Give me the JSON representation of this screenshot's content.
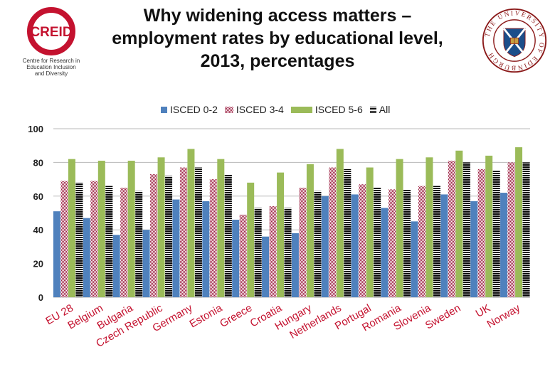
{
  "title_lines": [
    "Why widening access matters –",
    "employment rates by educational level,",
    "2013, percentages"
  ],
  "logo_left": {
    "name": "CREID",
    "caption": [
      "Centre for Research in",
      "Education Inclusion",
      "and Diversity"
    ]
  },
  "logo_right": {
    "text": "THE UNIVERSITY OF EDINBURGH"
  },
  "colors": {
    "isced02": "#4F81BD",
    "isced34": "#9B1C3F",
    "isced56": "#9BBB59",
    "all": "#000000",
    "creid_red": "#C4122F"
  },
  "chart_data": {
    "type": "bar",
    "ylim": [
      0,
      100
    ],
    "yticks": [
      0,
      20,
      40,
      60,
      80,
      100
    ],
    "grid": true,
    "legend_position": "top",
    "categories": [
      "EU 28",
      "Belgium",
      "Bulgaria",
      "Czech Republic",
      "Germany",
      "Estonia",
      "Greece",
      "Croatia",
      "Hungary",
      "Netherlands",
      "Portugal",
      "Romania",
      "Slovenia",
      "Sweden",
      "UK",
      "Norway"
    ],
    "series": [
      {
        "name": "ISCED 0-2",
        "pattern": "solid",
        "values": [
          51,
          47,
          37,
          40,
          58,
          57,
          46,
          36,
          38,
          60,
          61,
          53,
          45,
          61,
          57,
          62
        ]
      },
      {
        "name": "ISCED 3-4",
        "pattern": "checker",
        "values": [
          69,
          69,
          65,
          73,
          77,
          70,
          49,
          54,
          65,
          77,
          67,
          64,
          66,
          81,
          76,
          80
        ]
      },
      {
        "name": "ISCED 5-6",
        "pattern": "solid",
        "values": [
          82,
          81,
          81,
          83,
          88,
          82,
          68,
          74,
          79,
          88,
          77,
          82,
          83,
          87,
          84,
          89
        ]
      },
      {
        "name": "All",
        "pattern": "hstripe",
        "values": [
          68,
          66,
          63,
          72,
          77,
          73,
          53,
          53,
          63,
          76,
          65,
          64,
          66,
          80,
          75,
          80
        ]
      }
    ]
  }
}
